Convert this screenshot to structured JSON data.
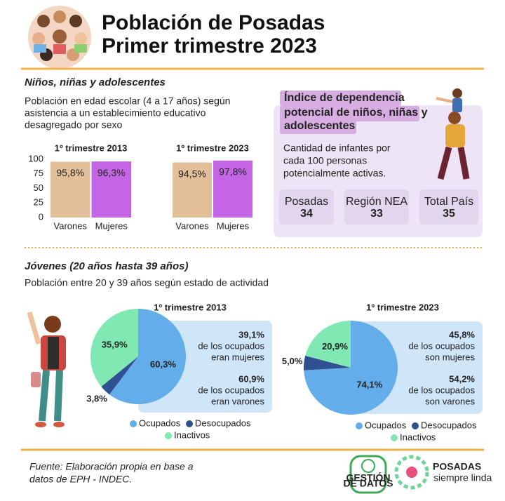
{
  "header": {
    "title_lines": [
      "Población de Posadas",
      "Primer trimestre 2023"
    ]
  },
  "section_children": {
    "heading": "Niños, niñas y adolescentes",
    "description_lines": [
      "Población en edad escolar (4 a 17 años) según",
      "asistencia a un establecimiento educativo",
      "desagregado por sexo"
    ]
  },
  "dependency": {
    "title_lines": [
      "Índice de dependencia",
      "potencial de niños, niñas y",
      "adolescentes"
    ],
    "description_lines": [
      "Cantidad de infantes por",
      "cada 100 personas",
      "potencialmente activas."
    ],
    "items": [
      {
        "label": "Posadas",
        "value": 34
      },
      {
        "label": "Región NEA",
        "value": 33
      },
      {
        "label": "Total País",
        "value": 35
      }
    ]
  },
  "section_youth": {
    "heading": "Jóvenes (20 años hasta 39 años)",
    "description": "Población entre 20 y 39 años según estado de actividad"
  },
  "chart_data": [
    {
      "type": "bar",
      "title": "1º trimestre 2013",
      "categories": [
        "Varones",
        "Mujeres"
      ],
      "values": [
        95.8,
        96.3
      ],
      "value_labels": [
        "95,8%",
        "96,3%"
      ],
      "colors": [
        "#e2bf98",
        "#c465e6"
      ],
      "ylim": [
        0,
        100
      ],
      "yticks": [
        0,
        25,
        50,
        75,
        100
      ]
    },
    {
      "type": "bar",
      "title": "1º trimestre 2023",
      "categories": [
        "Varones",
        "Mujeres"
      ],
      "values": [
        94.5,
        97.8
      ],
      "value_labels": [
        "94,5%",
        "97,8%"
      ],
      "colors": [
        "#e2bf98",
        "#c465e6"
      ],
      "ylim": [
        0,
        100
      ]
    },
    {
      "type": "pie",
      "title": "1º trimestre 2013",
      "categories": [
        "Ocupados",
        "Desocupados",
        "Inactivos"
      ],
      "values": [
        60.3,
        3.8,
        35.9
      ],
      "value_labels": [
        "60,3%",
        "3,8%",
        "35,9%"
      ],
      "colors": [
        "#63aeea",
        "#2f5191",
        "#80e8b2"
      ],
      "annotations": [
        {
          "value": "39,1%",
          "lines": [
            "de los ocupados",
            "eran mujeres"
          ]
        },
        {
          "value": "60,9%",
          "lines": [
            "de los ocupados",
            "eran varones"
          ]
        }
      ]
    },
    {
      "type": "pie",
      "title": "1º trimestre 2023",
      "categories": [
        "Ocupados",
        "Desocupados",
        "Inactivos"
      ],
      "values": [
        74.1,
        5.0,
        20.9
      ],
      "value_labels": [
        "74,1%",
        "5,0%",
        "20,9%"
      ],
      "colors": [
        "#63aeea",
        "#2f5191",
        "#80e8b2"
      ],
      "annotations": [
        {
          "value": "45,8%",
          "lines": [
            "de los ocupados",
            "son mujeres"
          ]
        },
        {
          "value": "54,2%",
          "lines": [
            "de los ocupados",
            "son varones"
          ]
        }
      ]
    }
  ],
  "footer": {
    "source_lines": [
      "Fuente: Elaboración propia en base a",
      "datos de EPH - INDEC."
    ],
    "logo_gestion_lines": [
      "GESTIÓN",
      "DE DATOS"
    ],
    "logo_posadas": "POSADAS",
    "logo_tagline": "siempre linda"
  }
}
